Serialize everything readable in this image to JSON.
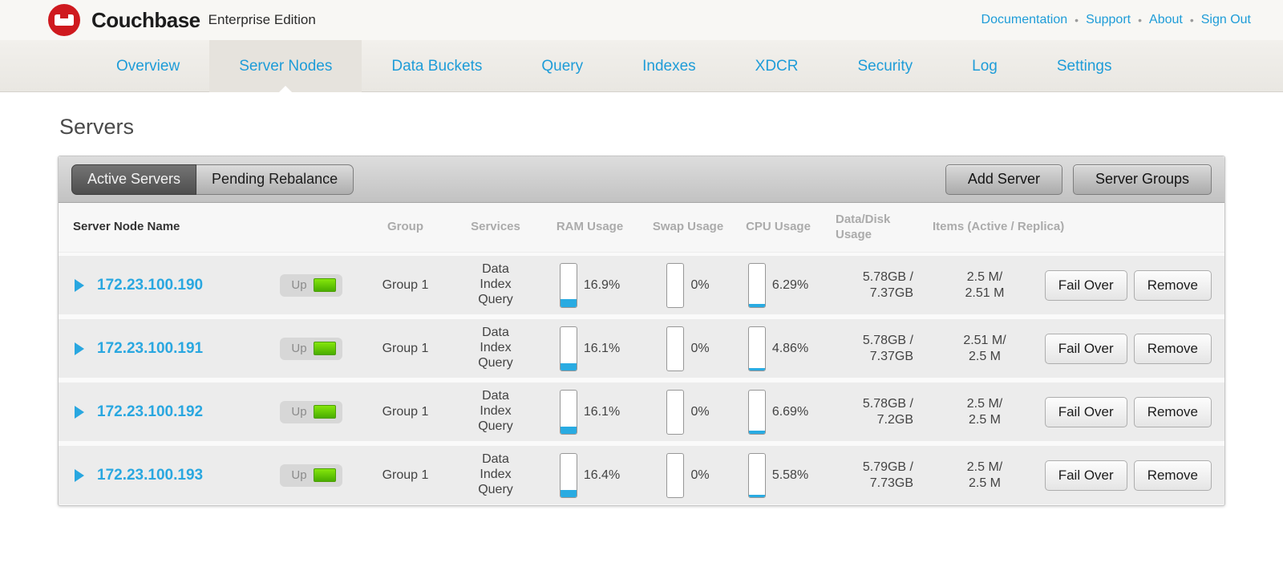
{
  "header": {
    "brand": "Couchbase",
    "edition": "Enterprise Edition",
    "links": [
      "Documentation",
      "Support",
      "About",
      "Sign Out"
    ]
  },
  "nav": {
    "tabs": [
      {
        "label": "Overview",
        "active": false
      },
      {
        "label": "Server Nodes",
        "active": true
      },
      {
        "label": "Data Buckets",
        "active": false
      },
      {
        "label": "Query",
        "active": false
      },
      {
        "label": "Indexes",
        "active": false
      },
      {
        "label": "XDCR",
        "active": false
      },
      {
        "label": "Security",
        "active": false
      },
      {
        "label": "Log",
        "active": false
      },
      {
        "label": "Settings",
        "active": false
      }
    ]
  },
  "page": {
    "title": "Servers"
  },
  "toolbar": {
    "tabs": [
      {
        "label": "Active Servers",
        "active": true
      },
      {
        "label": "Pending Rebalance",
        "active": false
      }
    ],
    "actions": [
      "Add Server",
      "Server Groups"
    ]
  },
  "table": {
    "columns": {
      "name": "Server Node Name",
      "group": "Group",
      "services": "Services",
      "ram": "RAM Usage",
      "swap": "Swap Usage",
      "cpu": "CPU Usage",
      "disk": "Data/Disk Usage",
      "items": "Items (Active / Replica)"
    },
    "row_actions": [
      "Fail Over",
      "Remove"
    ],
    "rows": [
      {
        "name": "172.23.100.190",
        "status": "Up",
        "group": "Group 1",
        "services": [
          "Data",
          "Index",
          "Query"
        ],
        "ram_pct": 16.9,
        "ram_label": "16.9%",
        "swap_pct": 0,
        "swap_label": "0%",
        "cpu_pct": 6.29,
        "cpu_label": "6.29%",
        "disk_line1": "5.78GB /",
        "disk_line2": "7.37GB",
        "items_line1": "2.5 M/",
        "items_line2": "2.51 M"
      },
      {
        "name": "172.23.100.191",
        "status": "Up",
        "group": "Group 1",
        "services": [
          "Data",
          "Index",
          "Query"
        ],
        "ram_pct": 16.1,
        "ram_label": "16.1%",
        "swap_pct": 0,
        "swap_label": "0%",
        "cpu_pct": 4.86,
        "cpu_label": "4.86%",
        "disk_line1": "5.78GB /",
        "disk_line2": "7.37GB",
        "items_line1": "2.51 M/",
        "items_line2": "2.5 M"
      },
      {
        "name": "172.23.100.192",
        "status": "Up",
        "group": "Group 1",
        "services": [
          "Data",
          "Index",
          "Query"
        ],
        "ram_pct": 16.1,
        "ram_label": "16.1%",
        "swap_pct": 0,
        "swap_label": "0%",
        "cpu_pct": 6.69,
        "cpu_label": "6.69%",
        "disk_line1": "5.78GB /",
        "disk_line2": "7.2GB",
        "items_line1": "2.5 M/",
        "items_line2": "2.5 M"
      },
      {
        "name": "172.23.100.193",
        "status": "Up",
        "group": "Group 1",
        "services": [
          "Data",
          "Index",
          "Query"
        ],
        "ram_pct": 16.4,
        "ram_label": "16.4%",
        "swap_pct": 0,
        "swap_label": "0%",
        "cpu_pct": 5.58,
        "cpu_label": "5.58%",
        "disk_line1": "5.79GB /",
        "disk_line2": "7.73GB",
        "items_line1": "2.5 M/",
        "items_line2": "2.5 M"
      }
    ]
  },
  "colors": {
    "link_blue": "#1e9cd8",
    "node_blue": "#29a7e0",
    "meter_blue": "#29abe2",
    "status_green": "#49ad00",
    "brand_red": "#cf191e"
  }
}
